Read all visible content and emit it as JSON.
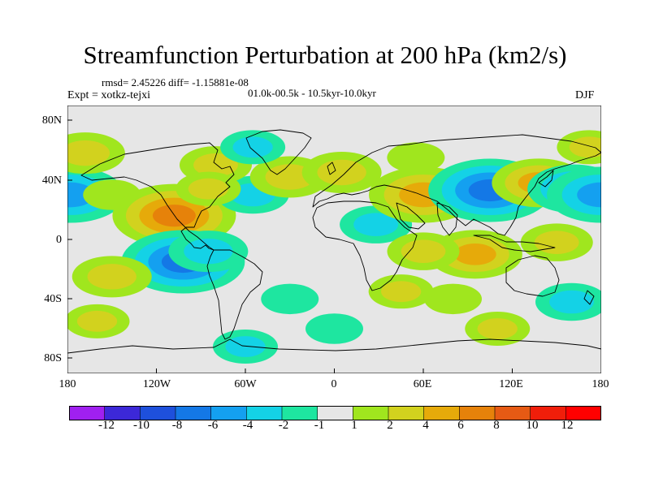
{
  "chart_data": {
    "type": "heatmap",
    "title": "Streamfunction Perturbation at 200 hPa (km2/s)",
    "stats_text": "rmsd= 2.45226  diff= -1.15881e-08",
    "experiment_text": "Expt = xotkz-tejxi",
    "period_text": "01.0k-00.5k - 10.5kyr-10.0kyr",
    "season": "DJF",
    "xlim": [
      -180,
      180
    ],
    "ylim": [
      -90,
      90
    ],
    "x_ticks": [
      {
        "value": -180,
        "label": "180"
      },
      {
        "value": -120,
        "label": "120W"
      },
      {
        "value": -60,
        "label": "60W"
      },
      {
        "value": 0,
        "label": "0"
      },
      {
        "value": 60,
        "label": "60E"
      },
      {
        "value": 120,
        "label": "120E"
      },
      {
        "value": 180,
        "label": "180"
      }
    ],
    "y_ticks": [
      {
        "value": 80,
        "label": "80N"
      },
      {
        "value": 40,
        "label": "40N"
      },
      {
        "value": 0,
        "label": "0"
      },
      {
        "value": -40,
        "label": "40S"
      },
      {
        "value": -80,
        "label": "80S"
      }
    ],
    "contour_levels": [
      "-12",
      "-10",
      "-8",
      "-6",
      "-4",
      "-2",
      "-1",
      "1",
      "2",
      "4",
      "6",
      "8",
      "10",
      "12"
    ],
    "colorbar_colors": [
      "#a020f0",
      "#3c28d8",
      "#1e50dc",
      "#1478e6",
      "#14a0f0",
      "#14d2e6",
      "#1ee6a0",
      "#e6e6e6",
      "#a0e61e",
      "#d2d21e",
      "#e6aa0a",
      "#e6820a",
      "#e65a14",
      "#f01e0a",
      "#ff0000"
    ],
    "anomalies": [
      {
        "lon": -178,
        "lat": 30,
        "value": -5
      },
      {
        "lon": -168,
        "lat": 58,
        "value": 3
      },
      {
        "lon": -150,
        "lat": 30,
        "value": 1.5
      },
      {
        "lon": -108,
        "lat": 16,
        "value": 6
      },
      {
        "lon": -102,
        "lat": -15,
        "value": -6
      },
      {
        "lon": -85,
        "lat": -8,
        "value": -3
      },
      {
        "lon": -150,
        "lat": -25,
        "value": 3
      },
      {
        "lon": -55,
        "lat": 30,
        "value": -2.5
      },
      {
        "lon": -30,
        "lat": 42,
        "value": 3
      },
      {
        "lon": -80,
        "lat": 50,
        "value": 2.5
      },
      {
        "lon": -55,
        "lat": 62,
        "value": -2
      },
      {
        "lon": -85,
        "lat": 34,
        "value": 2
      },
      {
        "lon": -60,
        "lat": -72,
        "value": -2
      },
      {
        "lon": -30,
        "lat": -40,
        "value": -1.5
      },
      {
        "lon": 5,
        "lat": 45,
        "value": 3
      },
      {
        "lon": 28,
        "lat": 10,
        "value": -2.5
      },
      {
        "lon": 60,
        "lat": 30,
        "value": 5
      },
      {
        "lon": 55,
        "lat": 55,
        "value": 1.5
      },
      {
        "lon": 105,
        "lat": 33,
        "value": -6
      },
      {
        "lon": 138,
        "lat": 38,
        "value": 4
      },
      {
        "lon": 162,
        "lat": 34,
        "value": -4
      },
      {
        "lon": 180,
        "lat": 30,
        "value": -5
      },
      {
        "lon": 95,
        "lat": -10,
        "value": 4
      },
      {
        "lon": 60,
        "lat": -8,
        "value": 2.5
      },
      {
        "lon": 150,
        "lat": -2,
        "value": 2.5
      },
      {
        "lon": 160,
        "lat": -42,
        "value": -2.5
      },
      {
        "lon": 110,
        "lat": -60,
        "value": 2
      },
      {
        "lon": 80,
        "lat": -40,
        "value": 1.5
      },
      {
        "lon": -160,
        "lat": -55,
        "value": 2
      },
      {
        "lon": 0,
        "lat": -60,
        "value": -1.5
      },
      {
        "lon": 45,
        "lat": -35,
        "value": 2
      },
      {
        "lon": 172,
        "lat": 62,
        "value": 2
      }
    ]
  }
}
